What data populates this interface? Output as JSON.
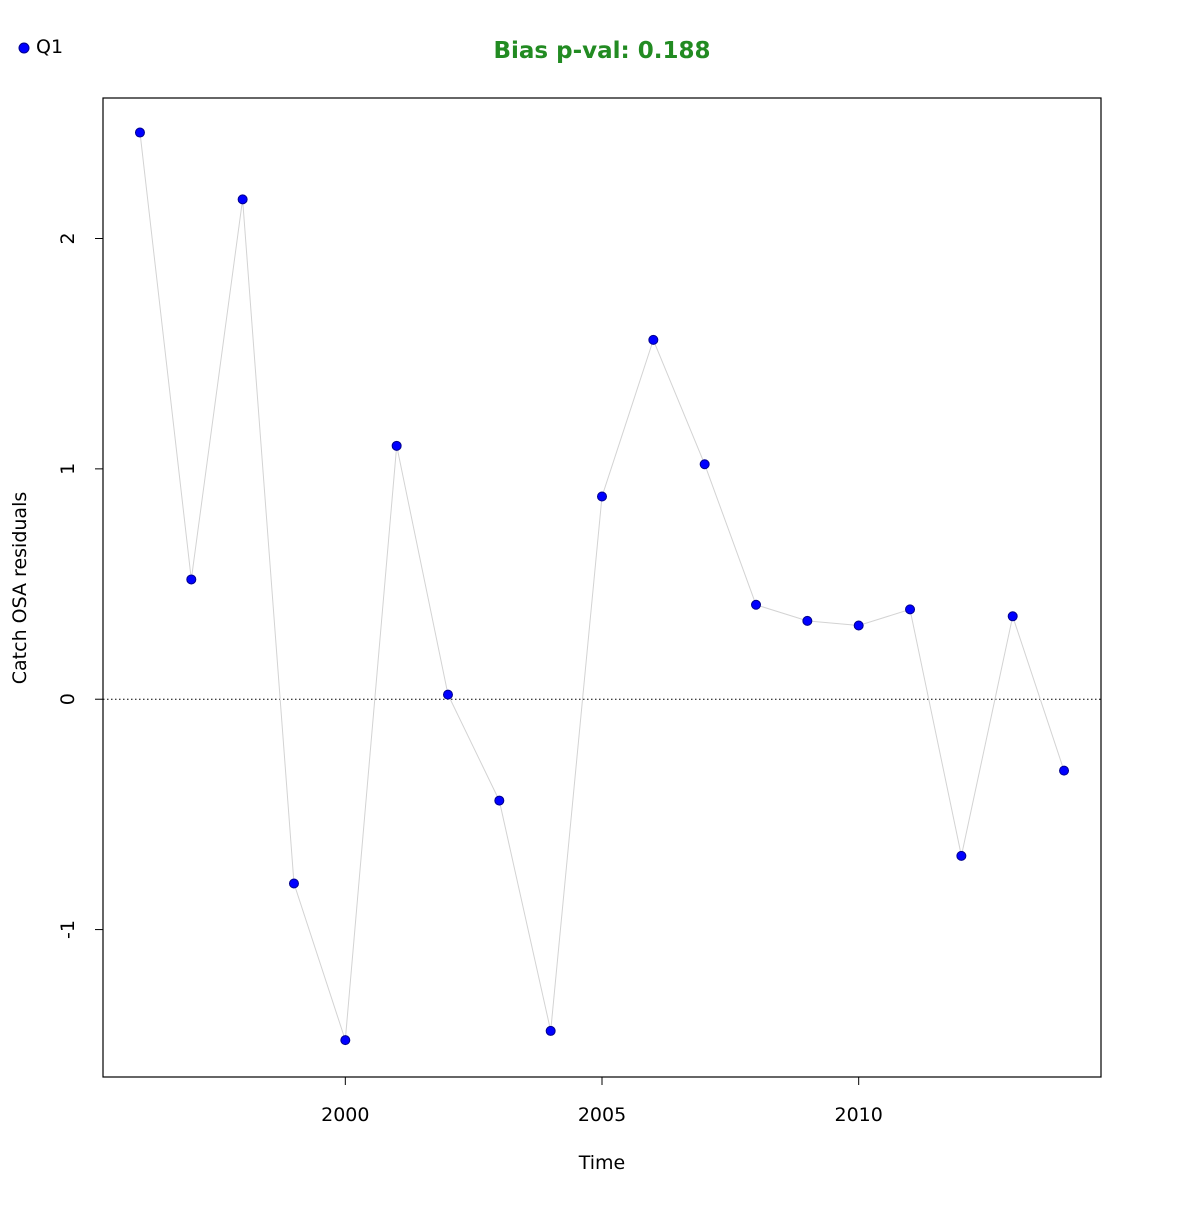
{
  "chart_data": {
    "type": "scatter",
    "title": "Bias p-val: 0.188",
    "title_color": "#228B22",
    "xlabel": "Time",
    "ylabel": "Catch OSA residuals",
    "xlim": [
      1995.28,
      2014.72
    ],
    "ylim": [
      -1.64,
      2.61
    ],
    "x_ticks": [
      2000,
      2005,
      2010
    ],
    "y_ticks": [
      -1,
      0,
      1,
      2
    ],
    "reference_line": 0,
    "grid": false,
    "legend": {
      "position": "top-left",
      "entries": [
        {
          "label": "Q1",
          "color": "#0000FF"
        }
      ]
    },
    "series": [
      {
        "name": "Q1",
        "color": "#0000FF",
        "line_color": "#d3d3d3",
        "x": [
          1996,
          1997,
          1998,
          1999,
          2000,
          2001,
          2002,
          2003,
          2004,
          2005,
          2006,
          2007,
          2008,
          2009,
          2010,
          2011,
          2012,
          2013,
          2014
        ],
        "values": [
          2.46,
          0.52,
          2.17,
          -0.8,
          -1.48,
          1.1,
          0.02,
          -0.44,
          -1.44,
          0.88,
          1.56,
          1.02,
          0.41,
          0.34,
          0.32,
          0.39,
          -0.68,
          0.36,
          -0.31
        ]
      }
    ]
  }
}
